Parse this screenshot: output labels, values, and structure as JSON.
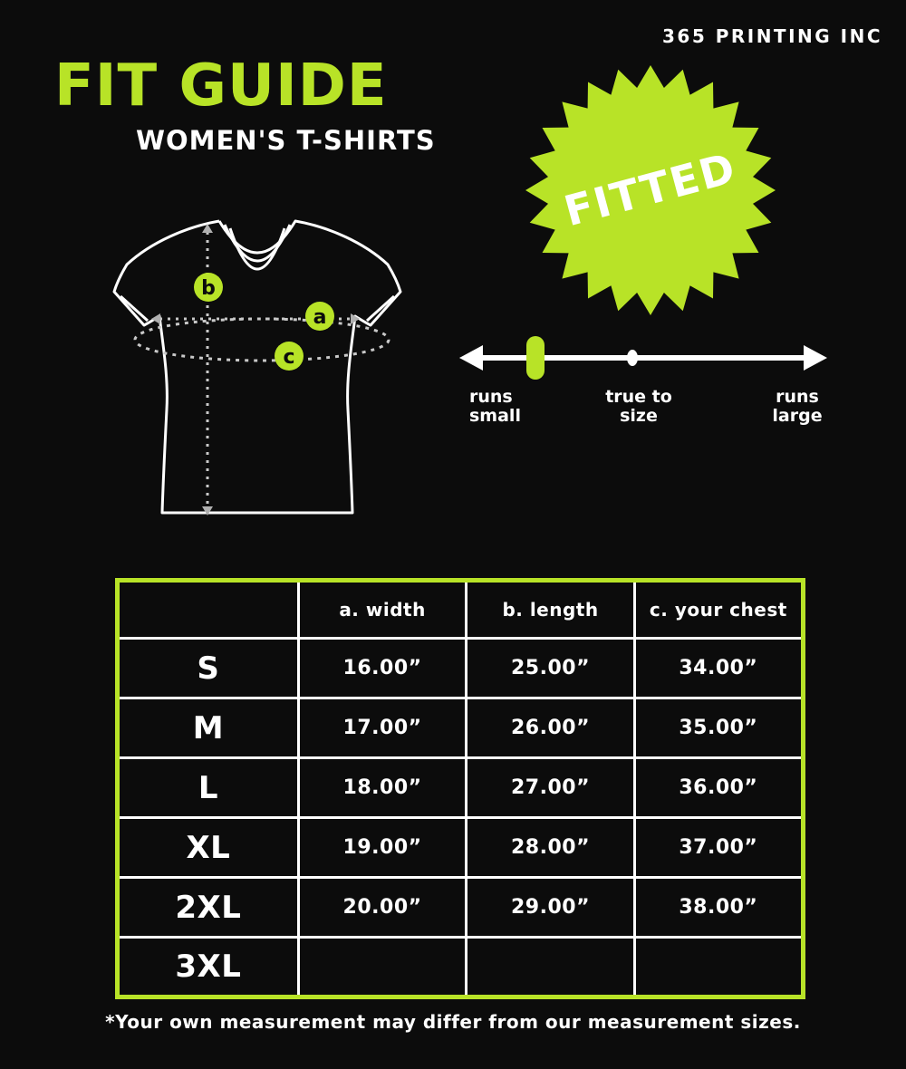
{
  "brand": "365 PRINTING INC",
  "header": {
    "title": "FIT GUIDE",
    "subtitle": "WOMEN'S T-SHIRTS"
  },
  "badge": {
    "label": "FITTED"
  },
  "diagram": {
    "markers": {
      "a": "a",
      "b": "b",
      "c": "c"
    }
  },
  "scale": {
    "labels": [
      {
        "line1": "runs",
        "line2": "small"
      },
      {
        "line1": "true to",
        "line2": "size"
      },
      {
        "line1": "runs",
        "line2": "large"
      }
    ],
    "marker_position": "runs small"
  },
  "table": {
    "headers": [
      "",
      "a. width",
      "b. length",
      "c. your chest"
    ],
    "rows": [
      [
        "S",
        "16.00”",
        "25.00”",
        "34.00”"
      ],
      [
        "M",
        "17.00”",
        "26.00”",
        "35.00”"
      ],
      [
        "L",
        "18.00”",
        "27.00”",
        "36.00”"
      ],
      [
        "XL",
        "19.00”",
        "28.00”",
        "37.00”"
      ],
      [
        "2XL",
        "20.00”",
        "29.00”",
        "38.00”"
      ],
      [
        "3XL",
        "",
        "",
        ""
      ]
    ]
  },
  "footnote": "*Your own measurement may differ from our measurement sizes.",
  "colors": {
    "accent_green": "#b8e327",
    "background": "#0c0c0c",
    "text": "#ffffff"
  }
}
